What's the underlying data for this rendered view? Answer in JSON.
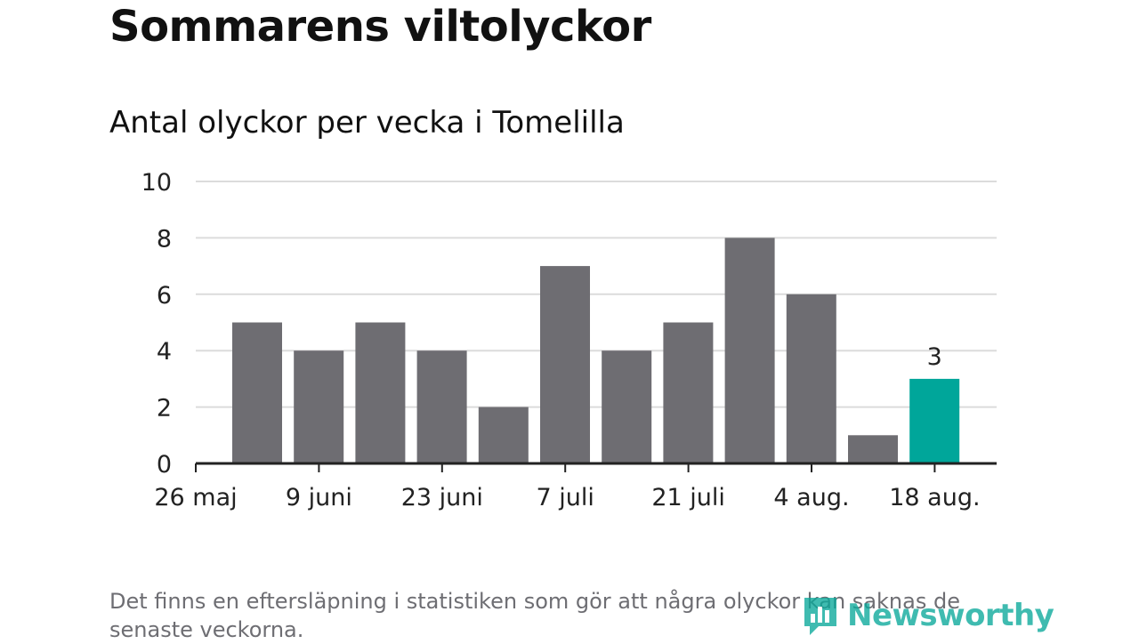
{
  "header": {
    "title": "Sommarens viltolyckor",
    "subtitle": "Antal olyckor per vecka i Tomelilla"
  },
  "chart_data": {
    "type": "bar",
    "title": "Sommarens viltolyckor",
    "subtitle": "Antal olyckor per vecka i Tomelilla",
    "xlabel": "",
    "ylabel": "",
    "ylim": [
      0,
      10
    ],
    "y_ticks": [
      0,
      2,
      4,
      6,
      8,
      10
    ],
    "x_tick_labels": [
      "26 maj",
      "9 juni",
      "23 juni",
      "7 juli",
      "21 juli",
      "4 aug.",
      "18 aug."
    ],
    "values": [
      5,
      4,
      5,
      4,
      2,
      7,
      4,
      5,
      8,
      6,
      1,
      3
    ],
    "bar_color": "#6e6d72",
    "highlight_color": "#00a69a",
    "highlight_index": 11,
    "data_labels": [
      {
        "index": 11,
        "text": "3"
      }
    ],
    "grid": true,
    "legend": "none"
  },
  "footer": {
    "note": "Det finns en eftersläpning i statistiken som gör att några olyckor kan saknas de senaste veckorna.",
    "logo_text": "Newsworthy",
    "logo_icon": "bar-chart-bubble-icon"
  }
}
